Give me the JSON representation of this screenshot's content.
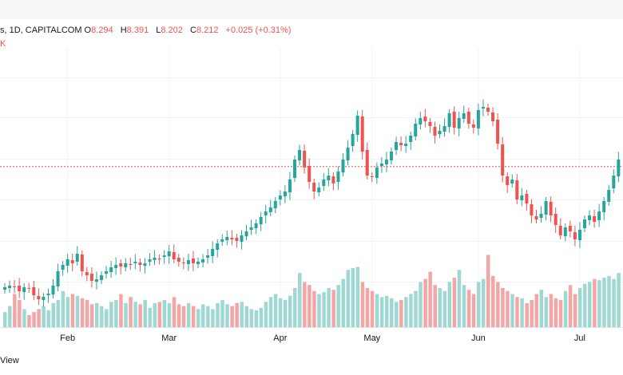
{
  "legend": {
    "symbol_fragment": "s, 1D, CAPITALCOM",
    "open_label": "O",
    "open": "8.294",
    "high_label": "H",
    "high": "8.391",
    "low_label": "L",
    "low": "8.202",
    "close_label": "C",
    "close": "8.212",
    "change": "+0.025 (+0.31%)",
    "volume_fragment": "K"
  },
  "footer": {
    "text": "View"
  },
  "colors": {
    "up": "#26a69a",
    "down": "#ef5350",
    "up_volume": "#9fd8d2",
    "down_volume": "#f3a6a6",
    "grid": "#f0f3fa",
    "last_price_line": "#ef5350"
  },
  "chart_data": {
    "type": "candlestick",
    "x_tick_labels": [
      "Feb",
      "Mar",
      "Apr",
      "May",
      "Jun",
      "Jul"
    ],
    "x_tick_index": [
      13,
      34,
      57,
      76,
      98,
      119
    ],
    "ylim": [
      6.4,
      9.6
    ],
    "last_price": 8.212,
    "grid": true,
    "price_path": [
      6.7,
      6.72,
      6.7,
      6.65,
      6.7,
      6.68,
      6.6,
      6.55,
      6.58,
      6.62,
      6.72,
      6.9,
      6.98,
      7.05,
      7.0,
      7.12,
      6.9,
      6.85,
      6.78,
      6.8,
      6.85,
      6.9,
      6.95,
      6.98,
      6.96,
      7.0,
      6.98,
      7.02,
      6.98,
      7.0,
      7.05,
      7.07,
      7.06,
      7.1,
      7.15,
      7.05,
      7.02,
      7.0,
      7.04,
      7.0,
      7.02,
      7.05,
      7.1,
      7.18,
      7.25,
      7.3,
      7.33,
      7.3,
      7.28,
      7.35,
      7.4,
      7.45,
      7.5,
      7.58,
      7.65,
      7.7,
      7.78,
      7.85,
      7.9,
      8.05,
      8.3,
      8.42,
      8.2,
      8.02,
      7.9,
      7.95,
      8.05,
      8.1,
      8.0,
      8.15,
      8.3,
      8.45,
      8.62,
      8.85,
      8.4,
      8.1,
      8.08,
      8.2,
      8.25,
      8.3,
      8.4,
      8.52,
      8.48,
      8.5,
      8.6,
      8.75,
      8.82,
      8.78,
      8.72,
      8.6,
      8.66,
      8.72,
      8.88,
      8.7,
      8.82,
      8.88,
      8.75,
      8.7,
      8.92,
      8.96,
      8.9,
      8.78,
      8.5,
      8.1,
      7.98,
      8.05,
      7.8,
      7.85,
      7.75,
      7.6,
      7.55,
      7.62,
      7.78,
      7.6,
      7.48,
      7.35,
      7.45,
      7.4,
      7.3,
      7.42,
      7.55,
      7.6,
      7.52,
      7.65,
      7.78,
      7.92,
      8.1,
      8.3
    ],
    "volume_relative": [
      0.25,
      0.35,
      0.55,
      0.45,
      0.3,
      0.2,
      0.25,
      0.3,
      0.35,
      0.28,
      0.4,
      0.45,
      0.6,
      0.5,
      0.55,
      0.52,
      0.48,
      0.45,
      0.38,
      0.4,
      0.35,
      0.3,
      0.42,
      0.45,
      0.55,
      0.4,
      0.5,
      0.42,
      0.38,
      0.45,
      0.32,
      0.4,
      0.42,
      0.45,
      0.4,
      0.5,
      0.38,
      0.35,
      0.4,
      0.35,
      0.3,
      0.38,
      0.35,
      0.3,
      0.4,
      0.45,
      0.38,
      0.35,
      0.4,
      0.42,
      0.35,
      0.3,
      0.28,
      0.32,
      0.42,
      0.5,
      0.55,
      0.48,
      0.45,
      0.52,
      0.65,
      0.9,
      0.75,
      0.7,
      0.6,
      0.55,
      0.58,
      0.65,
      0.62,
      0.7,
      0.8,
      0.95,
      0.98,
      1.0,
      0.75,
      0.65,
      0.6,
      0.55,
      0.5,
      0.52,
      0.48,
      0.42,
      0.45,
      0.5,
      0.55,
      0.6,
      0.75,
      0.8,
      0.92,
      0.7,
      0.65,
      0.6,
      0.75,
      0.82,
      0.95,
      0.7,
      0.62,
      0.55,
      0.75,
      0.8,
      1.2,
      0.85,
      0.75,
      0.65,
      0.6,
      0.55,
      0.5,
      0.48,
      0.4,
      0.45,
      0.55,
      0.62,
      0.5,
      0.55,
      0.48,
      0.45,
      0.6,
      0.7,
      0.55,
      0.65,
      0.72,
      0.75,
      0.8,
      0.78,
      0.82,
      0.85,
      0.8,
      0.9
    ]
  }
}
